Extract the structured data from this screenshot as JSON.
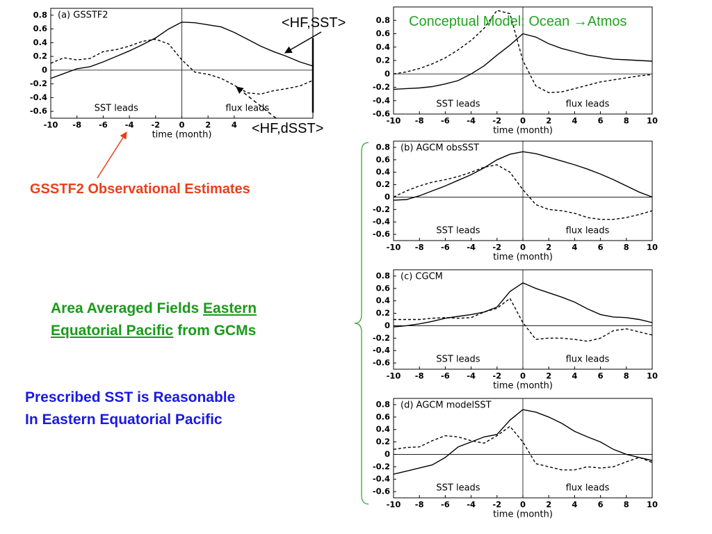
{
  "chart_data": [
    {
      "type": "line",
      "title": "(a) GSSTF2",
      "xlabel": "time (month)",
      "annotations": [
        "SST leads",
        "flux leads"
      ],
      "x": [
        -10,
        -9,
        -8,
        -7,
        -6,
        -5,
        -4,
        -3,
        -2,
        -1,
        0,
        1,
        2,
        3,
        4,
        5,
        6,
        7,
        8,
        9,
        10
      ],
      "xlim": [
        -10,
        10
      ],
      "xticks": [
        -10,
        -8,
        -6,
        -4,
        -2,
        0,
        2,
        4
      ],
      "ylim": [
        -0.7,
        0.9
      ],
      "yticks": [
        -0.6,
        -0.4,
        -0.2,
        0,
        0.2,
        0.4,
        0.6,
        0.8
      ],
      "series": [
        {
          "color": "#000000",
          "dash": false,
          "values": [
            -0.12,
            -0.05,
            0.02,
            0.05,
            0.12,
            0.2,
            0.28,
            0.37,
            0.47,
            0.6,
            0.7,
            0.69,
            0.66,
            0.63,
            0.55,
            0.45,
            0.35,
            0.27,
            0.2,
            0.12,
            0.06
          ]
        },
        {
          "color": "#000000",
          "dash": true,
          "values": [
            0.1,
            0.18,
            0.15,
            0.17,
            0.27,
            0.3,
            0.35,
            0.42,
            0.45,
            0.38,
            0.15,
            -0.03,
            -0.06,
            -0.12,
            -0.22,
            -0.33,
            -0.35,
            -0.3,
            -0.27,
            -0.23,
            -0.15
          ]
        }
      ]
    },
    {
      "type": "line",
      "xlabel": "time (month)",
      "annotations": [
        "SST leads",
        "flux leads"
      ],
      "x": [
        -10,
        -9,
        -8,
        -7,
        -6,
        -5,
        -4,
        -3,
        -2,
        -1,
        0,
        1,
        2,
        3,
        4,
        5,
        6,
        7,
        8,
        9,
        10
      ],
      "xlim": [
        -10,
        10
      ],
      "xticks": [
        -10,
        -8,
        -6,
        -4,
        -2,
        0,
        2,
        4,
        6,
        8,
        10
      ],
      "ylim": [
        -0.6,
        1.0
      ],
      "yticks": [
        -0.6,
        -0.4,
        -0.2,
        0,
        0.2,
        0.4,
        0.6,
        0.8
      ],
      "series": [
        {
          "color": "#000000",
          "dash": false,
          "values": [
            -0.23,
            -0.22,
            -0.21,
            -0.19,
            -0.15,
            -0.1,
            0,
            0.12,
            0.28,
            0.43,
            0.6,
            0.55,
            0.45,
            0.38,
            0.33,
            0.28,
            0.25,
            0.22,
            0.21,
            0.2,
            0.19
          ]
        },
        {
          "color": "#000000",
          "dash": true,
          "values": [
            0,
            0.03,
            0.08,
            0.15,
            0.24,
            0.36,
            0.5,
            0.68,
            0.95,
            0.9,
            0.2,
            -0.18,
            -0.28,
            -0.27,
            -0.22,
            -0.17,
            -0.12,
            -0.09,
            -0.06,
            -0.03,
            -0.01
          ]
        }
      ]
    },
    {
      "type": "line",
      "title": "(b) AGCM obsSST",
      "xlabel": "time (month)",
      "annotations": [
        "SST leads",
        "flux leads"
      ],
      "x": [
        -10,
        -9,
        -8,
        -7,
        -6,
        -5,
        -4,
        -3,
        -2,
        -1,
        0,
        1,
        2,
        3,
        4,
        5,
        6,
        7,
        8,
        9,
        10
      ],
      "xlim": [
        -10,
        10
      ],
      "xticks": [
        -10,
        -8,
        -6,
        -4,
        -2,
        0,
        2,
        4,
        6,
        8,
        10
      ],
      "ylim": [
        -0.7,
        0.9
      ],
      "yticks": [
        -0.6,
        -0.4,
        -0.2,
        0,
        0.2,
        0.4,
        0.6,
        0.8
      ],
      "series": [
        {
          "color": "#000000",
          "dash": false,
          "values": [
            -0.05,
            -0.04,
            0.02,
            0.1,
            0.18,
            0.27,
            0.36,
            0.47,
            0.6,
            0.69,
            0.73,
            0.7,
            0.64,
            0.58,
            0.52,
            0.45,
            0.37,
            0.28,
            0.18,
            0.08,
            0
          ]
        },
        {
          "color": "#000000",
          "dash": true,
          "values": [
            0,
            0.1,
            0.18,
            0.24,
            0.28,
            0.33,
            0.4,
            0.48,
            0.52,
            0.4,
            0.12,
            -0.12,
            -0.2,
            -0.22,
            -0.26,
            -0.33,
            -0.36,
            -0.36,
            -0.33,
            -0.28,
            -0.22
          ]
        }
      ]
    },
    {
      "type": "line",
      "title": "(c) CGCM",
      "xlabel": "time (month)",
      "annotations": [
        "SST leads",
        "flux leads"
      ],
      "x": [
        -10,
        -9,
        -8,
        -7,
        -6,
        -5,
        -4,
        -3,
        -2,
        -1,
        0,
        1,
        2,
        3,
        4,
        5,
        6,
        7,
        8,
        9,
        10
      ],
      "xlim": [
        -10,
        10
      ],
      "xticks": [
        -10,
        -8,
        -6,
        -4,
        -2,
        0,
        2,
        4,
        6,
        8,
        10
      ],
      "ylim": [
        -0.7,
        0.9
      ],
      "yticks": [
        -0.6,
        -0.4,
        -0.2,
        0,
        0.2,
        0.4,
        0.6,
        0.8
      ],
      "series": [
        {
          "color": "#000000",
          "dash": false,
          "values": [
            -0.02,
            0,
            0.03,
            0.07,
            0.12,
            0.15,
            0.18,
            0.22,
            0.3,
            0.55,
            0.69,
            0.6,
            0.53,
            0.46,
            0.38,
            0.27,
            0.18,
            0.14,
            0.13,
            0.1,
            0.05
          ]
        },
        {
          "color": "#000000",
          "dash": true,
          "values": [
            0.1,
            0.1,
            0.1,
            0.12,
            0.13,
            0.12,
            0.13,
            0.22,
            0.28,
            0.44,
            0.05,
            -0.22,
            -0.2,
            -0.2,
            -0.22,
            -0.25,
            -0.2,
            -0.08,
            -0.05,
            -0.1,
            -0.15
          ]
        }
      ]
    },
    {
      "type": "line",
      "title": "(d) AGCM modelSST",
      "xlabel": "time (month)",
      "annotations": [
        "SST leads",
        "flux leads"
      ],
      "x": [
        -10,
        -9,
        -8,
        -7,
        -6,
        -5,
        -4,
        -3,
        -2,
        -1,
        0,
        1,
        2,
        3,
        4,
        5,
        6,
        7,
        8,
        9,
        10
      ],
      "xlim": [
        -10,
        10
      ],
      "xticks": [
        -10,
        -8,
        -6,
        -4,
        -2,
        0,
        2,
        4,
        6,
        8,
        10
      ],
      "ylim": [
        -0.7,
        0.9
      ],
      "yticks": [
        -0.6,
        -0.4,
        -0.2,
        0,
        0.2,
        0.4,
        0.6,
        0.8
      ],
      "series": [
        {
          "color": "#000000",
          "dash": false,
          "values": [
            -0.32,
            -0.27,
            -0.22,
            -0.17,
            -0.05,
            0.12,
            0.2,
            0.28,
            0.32,
            0.55,
            0.72,
            0.68,
            0.6,
            0.5,
            0.37,
            0.28,
            0.2,
            0.08,
            0,
            -0.05,
            -0.1
          ]
        },
        {
          "color": "#000000",
          "dash": true,
          "values": [
            0.08,
            0.11,
            0.12,
            0.22,
            0.3,
            0.28,
            0.22,
            0.18,
            0.3,
            0.45,
            0.2,
            -0.15,
            -0.2,
            -0.25,
            -0.25,
            -0.2,
            -0.22,
            -0.2,
            -0.12,
            -0.05,
            -0.13
          ]
        }
      ]
    }
  ],
  "slide": {
    "hf_sst": "<HF,SST>",
    "hf_dsst": "<HF,dSST>",
    "heading": "Conceptual Model: Ocean →Atmos",
    "obs_note": "GSSTF2 Observational Estimates",
    "gcm_note": [
      "Area Averaged Fields",
      "Eastern",
      "Equatorial Pacific",
      "from GCMs"
    ],
    "sst_note": [
      "Prescribed SST is Reasonable",
      "In Eastern Equatorial Pacific"
    ]
  }
}
